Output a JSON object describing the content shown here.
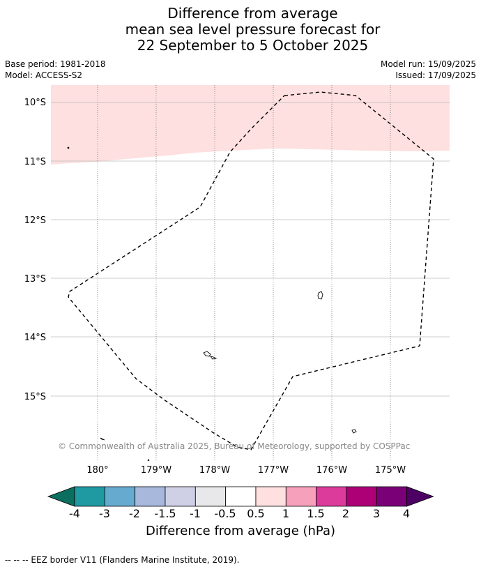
{
  "title": {
    "line1": "Difference from average",
    "line2": "mean sea level pressure forecast for",
    "line3": "22 September to 5 October 2025"
  },
  "meta": {
    "base_period": "Base period: 1981-2018",
    "model": "Model: ACCESS-S2",
    "model_run": "Model run: 15/09/2025",
    "issued": "Issued: 17/09/2025"
  },
  "map": {
    "lat_labels": [
      "10°S",
      "11°S",
      "12°S",
      "13°S",
      "14°S",
      "15°S"
    ],
    "lon_labels": [
      "180°",
      "179°W",
      "178°W",
      "177°W",
      "176°W",
      "175°W"
    ],
    "shading_color": "#fde0df",
    "shading_category": "0.5 to 1",
    "eez_line_style": "dashed",
    "copyright": "© Commonwealth of Australia 2025, Bureau of Meteorology, supported by COSPPac"
  },
  "colorbar": {
    "colors": [
      "#0b6e5e",
      "#1f9aa3",
      "#66aacf",
      "#a7b8dc",
      "#cfd0e6",
      "#e8e8ea",
      "#ffffff",
      "#fde0df",
      "#f6a0bb",
      "#dd3b9c",
      "#ad0077",
      "#7a0078",
      "#4d0064"
    ],
    "tick_labels": [
      "-4",
      "-3",
      "-2",
      "-1.5",
      "-1",
      "-0.5",
      "0.5",
      "1",
      "1.5",
      "2",
      "3",
      "4"
    ],
    "label": "Difference from average (hPa)"
  },
  "legend": {
    "text": "--  --  -- EEZ border V11 (Flanders Marine Institute, 2019)."
  }
}
